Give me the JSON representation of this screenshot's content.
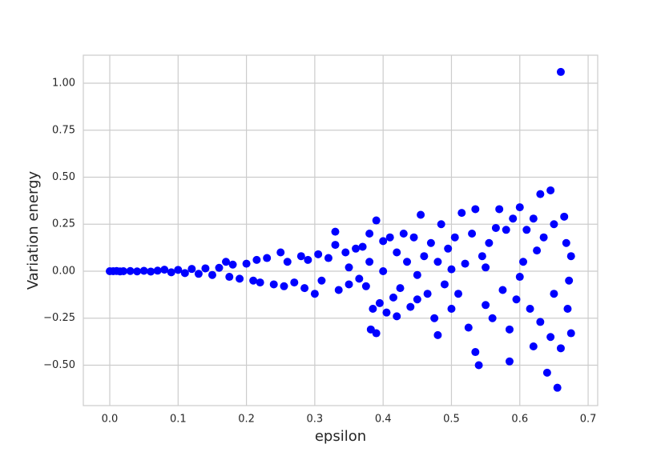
{
  "chart_data": {
    "type": "scatter",
    "xlabel": "epsilon",
    "ylabel": "Variation energy",
    "color": "#0000ff",
    "grid": true,
    "xlim": [
      -0.0387,
      0.714
    ],
    "ylim": [
      -0.715,
      1.149
    ],
    "xticks": [
      {
        "value": 0,
        "label": "0.0"
      },
      {
        "value": 0.1,
        "label": "0.1"
      },
      {
        "value": 0.2,
        "label": "0.2"
      },
      {
        "value": 0.3,
        "label": "0.3"
      },
      {
        "value": 0.4,
        "label": "0.4"
      },
      {
        "value": 0.5,
        "label": "0.5"
      },
      {
        "value": 0.6,
        "label": "0.6"
      },
      {
        "value": 0.7,
        "label": "0.7"
      }
    ],
    "yticks": [
      {
        "value": -0.5,
        "label": "−0.50"
      },
      {
        "value": -0.25,
        "label": "−0.25"
      },
      {
        "value": 0,
        "label": "0.00"
      },
      {
        "value": 0.25,
        "label": "0.25"
      },
      {
        "value": 0.5,
        "label": "0.50"
      },
      {
        "value": 0.75,
        "label": "0.75"
      },
      {
        "value": 1,
        "label": "1.00"
      }
    ],
    "x": [
      0,
      0.005,
      0.01,
      0.015,
      0.02,
      0.03,
      0.04,
      0.05,
      0.06,
      0.07,
      0.08,
      0.09,
      0.1,
      0.11,
      0.12,
      0.13,
      0.14,
      0.15,
      0.16,
      0.17,
      0.175,
      0.18,
      0.19,
      0.2,
      0.21,
      0.215,
      0.22,
      0.23,
      0.24,
      0.25,
      0.255,
      0.26,
      0.27,
      0.28,
      0.285,
      0.29,
      0.3,
      0.305,
      0.31,
      0.32,
      0.33,
      0.33,
      0.335,
      0.345,
      0.35,
      0.36,
      0.365,
      0.37,
      0.375,
      0.38,
      0.38,
      0.382,
      0.385,
      0.39,
      0.39,
      0.395,
      0.4,
      0.405,
      0.41,
      0.415,
      0.42,
      0.42,
      0.425,
      0.43,
      0.435,
      0.44,
      0.445,
      0.45,
      0.455,
      0.46,
      0.465,
      0.47,
      0.475,
      0.48,
      0.48,
      0.485,
      0.49,
      0.495,
      0.5,
      0.505,
      0.51,
      0.515,
      0.52,
      0.525,
      0.53,
      0.535,
      0.535,
      0.54,
      0.545,
      0.55,
      0.555,
      0.56,
      0.565,
      0.57,
      0.575,
      0.58,
      0.585,
      0.585,
      0.59,
      0.595,
      0.6,
      0.605,
      0.61,
      0.615,
      0.62,
      0.625,
      0.63,
      0.63,
      0.635,
      0.64,
      0.645,
      0.645,
      0.65,
      0.65,
      0.655,
      0.66,
      0.66,
      0.665,
      0.67,
      0.675,
      0.675,
      0.672,
      0.668,
      0.62,
      0.6,
      0.55,
      0.5,
      0.45,
      0.4,
      0.35
    ],
    "values": [
      0,
      0,
      0.001,
      -0.001,
      0,
      0.001,
      -0.001,
      0.002,
      -0.002,
      0.003,
      0.008,
      -0.006,
      0.007,
      -0.01,
      0.012,
      -0.014,
      0.015,
      -0.02,
      0.018,
      0.05,
      -0.03,
      0.035,
      -0.04,
      0.04,
      -0.05,
      0.06,
      -0.06,
      0.07,
      -0.07,
      0.1,
      -0.08,
      0.05,
      -0.06,
      0.08,
      -0.09,
      0.06,
      -0.12,
      0.09,
      -0.05,
      0.07,
      0.21,
      0.14,
      -0.1,
      0.1,
      -0.07,
      0.12,
      -0.04,
      0.13,
      -0.08,
      0.05,
      0.2,
      -0.31,
      -0.2,
      0.27,
      -0.33,
      -0.17,
      0.16,
      -0.22,
      0.18,
      -0.14,
      0.1,
      -0.24,
      -0.09,
      0.2,
      0.05,
      -0.19,
      0.18,
      -0.15,
      0.3,
      0.08,
      -0.12,
      0.15,
      -0.25,
      0.05,
      -0.34,
      0.25,
      -0.07,
      0.12,
      -0.2,
      0.18,
      -0.12,
      0.31,
      0.04,
      -0.3,
      0.2,
      0.33,
      -0.43,
      -0.5,
      0.08,
      -0.18,
      0.15,
      -0.25,
      0.23,
      0.33,
      -0.1,
      0.22,
      -0.48,
      -0.31,
      0.28,
      -0.15,
      0.34,
      0.05,
      0.22,
      -0.2,
      -0.4,
      0.11,
      0.41,
      -0.27,
      0.18,
      -0.54,
      0.43,
      -0.35,
      0.25,
      -0.12,
      -0.62,
      1.06,
      -0.41,
      0.29,
      -0.2,
      0.08,
      -0.33,
      -0.05,
      0.15,
      0.28,
      -0.03,
      0.02,
      0.01,
      -0.02,
      0,
      0.02
    ]
  }
}
